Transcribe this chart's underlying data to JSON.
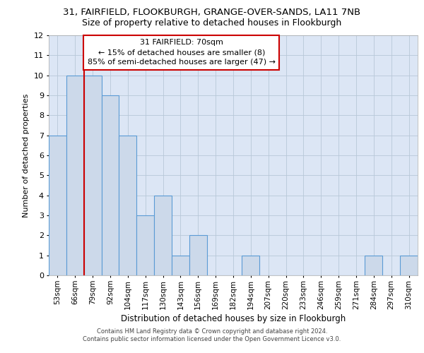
{
  "title_line1": "31, FAIRFIELD, FLOOKBURGH, GRANGE-OVER-SANDS, LA11 7NB",
  "title_line2": "Size of property relative to detached houses in Flookburgh",
  "xlabel": "Distribution of detached houses by size in Flookburgh",
  "ylabel": "Number of detached properties",
  "categories": [
    "53sqm",
    "66sqm",
    "79sqm",
    "92sqm",
    "104sqm",
    "117sqm",
    "130sqm",
    "143sqm",
    "156sqm",
    "169sqm",
    "182sqm",
    "194sqm",
    "207sqm",
    "220sqm",
    "233sqm",
    "246sqm",
    "259sqm",
    "271sqm",
    "284sqm",
    "297sqm",
    "310sqm"
  ],
  "values": [
    7,
    10,
    10,
    9,
    7,
    3,
    4,
    1,
    2,
    0,
    0,
    1,
    0,
    0,
    0,
    0,
    0,
    0,
    1,
    0,
    1
  ],
  "bar_color": "#ccd9ea",
  "bar_edge_color": "#5b9bd5",
  "red_line_x": 1.5,
  "red_line_color": "#cc0000",
  "annotation_text": "31 FAIRFIELD: 70sqm\n← 15% of detached houses are smaller (8)\n85% of semi-detached houses are larger (47) →",
  "annotation_box_facecolor": "#ffffff",
  "annotation_box_edgecolor": "#cc0000",
  "ylim": [
    0,
    12
  ],
  "yticks": [
    0,
    1,
    2,
    3,
    4,
    5,
    6,
    7,
    8,
    9,
    10,
    11,
    12
  ],
  "footer_line1": "Contains HM Land Registry data © Crown copyright and database right 2024.",
  "footer_line2": "Contains public sector information licensed under the Open Government Licence v3.0.",
  "plot_bg_color": "#dce6f5",
  "fig_bg_color": "#ffffff",
  "grid_color": "#b8c8d8"
}
